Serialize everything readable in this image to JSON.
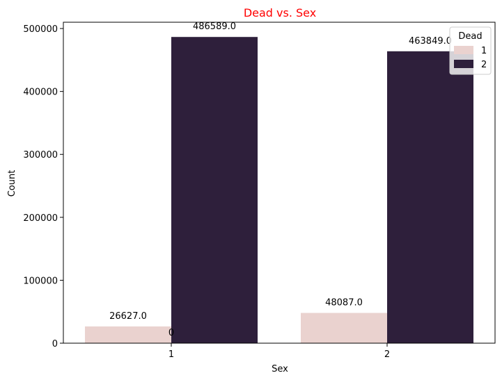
{
  "chart_data": {
    "type": "bar",
    "title": "Dead vs. Sex",
    "title_color": "#ff0000",
    "xlabel": "Sex",
    "ylabel": "Count",
    "categories": [
      "1",
      "2"
    ],
    "series": [
      {
        "name": "1",
        "color": "#ead2cf",
        "values": [
          26627.0,
          48087.0
        ]
      },
      {
        "name": "2",
        "color": "#2e1f3b",
        "values": [
          486589.0,
          463849.0
        ]
      }
    ],
    "data_labels": [
      {
        "series": 0,
        "category": 0,
        "text": "26627.0"
      },
      {
        "series": 1,
        "category": 0,
        "text": "486589.0"
      },
      {
        "series": 0,
        "category": 1,
        "text": "48087.0"
      },
      {
        "series": 1,
        "category": 1,
        "text": "463849.0"
      }
    ],
    "extra_label": {
      "text": "0",
      "x_category": 0,
      "y": 0
    },
    "ylim": [
      0,
      510000
    ],
    "yticks": [
      0,
      100000,
      200000,
      300000,
      400000,
      500000
    ],
    "ytick_labels": [
      "0",
      "100000",
      "200000",
      "300000",
      "400000",
      "500000"
    ],
    "legend": {
      "title": "Dead",
      "entries": [
        "1",
        "2"
      ],
      "placement": "top-right"
    },
    "grid": false
  }
}
